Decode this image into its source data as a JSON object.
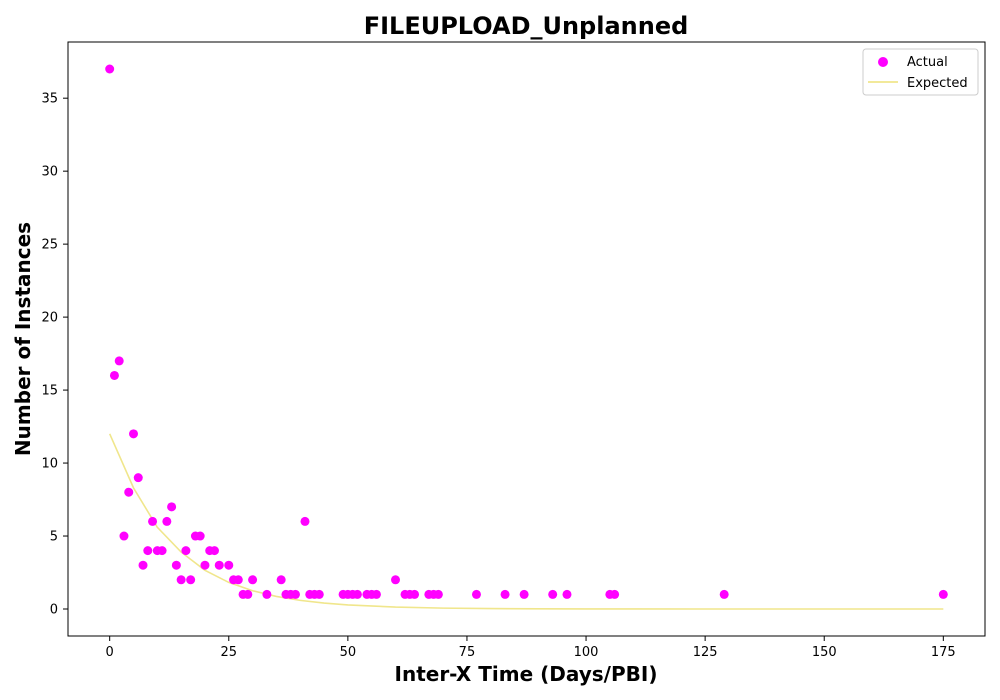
{
  "chart_data": {
    "type": "scatter",
    "title": "FILEUPLOAD_Unplanned",
    "xlabel": "Inter-X Time (Days/PBI)",
    "ylabel": "Number of Instances",
    "xlim": [
      -8.75,
      183.75
    ],
    "ylim": [
      -1.85,
      38.85
    ],
    "xticks": [
      0,
      25,
      50,
      75,
      100,
      125,
      150,
      175
    ],
    "yticks": [
      0,
      5,
      10,
      15,
      20,
      25,
      30,
      35
    ],
    "grid": false,
    "legend_position": "top-right",
    "series": [
      {
        "name": "Actual",
        "kind": "scatter",
        "color": "#ff00ff",
        "points": [
          [
            0,
            37
          ],
          [
            1,
            16
          ],
          [
            2,
            17
          ],
          [
            3,
            5
          ],
          [
            4,
            8
          ],
          [
            5,
            12
          ],
          [
            6,
            9
          ],
          [
            7,
            3
          ],
          [
            8,
            4
          ],
          [
            9,
            6
          ],
          [
            10,
            4
          ],
          [
            11,
            4
          ],
          [
            12,
            6
          ],
          [
            13,
            7
          ],
          [
            14,
            3
          ],
          [
            15,
            2
          ],
          [
            16,
            4
          ],
          [
            17,
            2
          ],
          [
            18,
            5
          ],
          [
            19,
            5
          ],
          [
            20,
            3
          ],
          [
            21,
            4
          ],
          [
            22,
            4
          ],
          [
            23,
            3
          ],
          [
            25,
            3
          ],
          [
            26,
            2
          ],
          [
            27,
            2
          ],
          [
            28,
            1
          ],
          [
            29,
            1
          ],
          [
            30,
            2
          ],
          [
            33,
            1
          ],
          [
            36,
            2
          ],
          [
            37,
            1
          ],
          [
            38,
            1
          ],
          [
            39,
            1
          ],
          [
            41,
            6
          ],
          [
            42,
            1
          ],
          [
            43,
            1
          ],
          [
            44,
            1
          ],
          [
            49,
            1
          ],
          [
            50,
            1
          ],
          [
            51,
            1
          ],
          [
            52,
            1
          ],
          [
            54,
            1
          ],
          [
            55,
            1
          ],
          [
            56,
            1
          ],
          [
            60,
            2
          ],
          [
            62,
            1
          ],
          [
            63,
            1
          ],
          [
            64,
            1
          ],
          [
            67,
            1
          ],
          [
            68,
            1
          ],
          [
            69,
            1
          ],
          [
            77,
            1
          ],
          [
            83,
            1
          ],
          [
            87,
            1
          ],
          [
            93,
            1
          ],
          [
            96,
            1
          ],
          [
            105,
            1
          ],
          [
            106,
            1
          ],
          [
            129,
            1
          ],
          [
            175,
            1
          ]
        ]
      },
      {
        "name": "Expected",
        "kind": "line",
        "color": "#f0e68c",
        "x": [
          0,
          5,
          10,
          15,
          20,
          25,
          30,
          35,
          40,
          45,
          50,
          60,
          70,
          80,
          90,
          100,
          110,
          125,
          150,
          175
        ],
        "values": [
          12.0,
          8.3,
          5.6,
          3.9,
          2.65,
          1.82,
          1.25,
          0.86,
          0.59,
          0.41,
          0.28,
          0.13,
          0.06,
          0.03,
          0.014,
          0.007,
          0.003,
          0.001,
          0.0,
          0.0
        ]
      }
    ]
  }
}
